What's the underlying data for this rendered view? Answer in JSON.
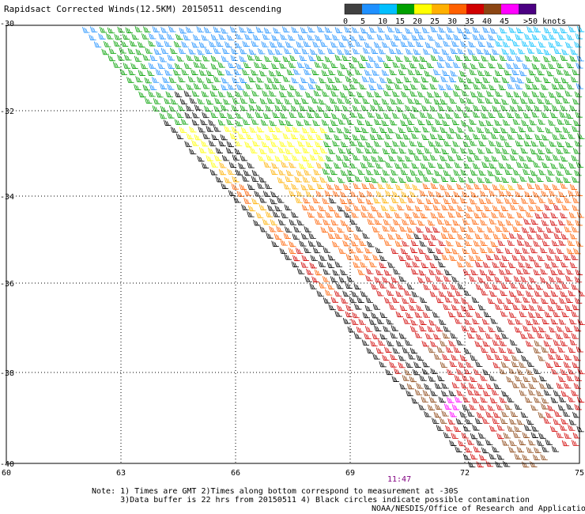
{
  "title": "Rapidsact Corrected Winds(12.5KM) 20150511 descending",
  "legend": {
    "bins": [
      {
        "label": "0",
        "color": "#404040"
      },
      {
        "label": "5",
        "color": "#1e90ff"
      },
      {
        "label": "10",
        "color": "#00bfff"
      },
      {
        "label": "15",
        "color": "#00a000"
      },
      {
        "label": "20",
        "color": "#ffff00"
      },
      {
        "label": "25",
        "color": "#ffb000"
      },
      {
        "label": "30",
        "color": "#ff6000"
      },
      {
        "label": "35",
        "color": "#d00000"
      },
      {
        "label": "40",
        "color": "#8b4513"
      },
      {
        "label": "45",
        "color": "#ff00ff"
      },
      {
        "label": ">50 knots",
        "color": "#4b0082"
      }
    ]
  },
  "axes": {
    "lat_labels": [
      "-30",
      "-32",
      "-34",
      "-36",
      "-38",
      "-40"
    ],
    "lon_labels": [
      "60",
      "63",
      "66",
      "69",
      "72",
      "75"
    ]
  },
  "time_label": "11:47",
  "notes": [
    "Note: 1) Times are GMT 2)Times along bottom correspond to measurement at -30S",
    "      3)Data buffer is 22 hrs from 20150511 4) Black circles indicate possible contamination"
  ],
  "credit": "NOAA/NESDIS/Office of Research and Applications"
}
